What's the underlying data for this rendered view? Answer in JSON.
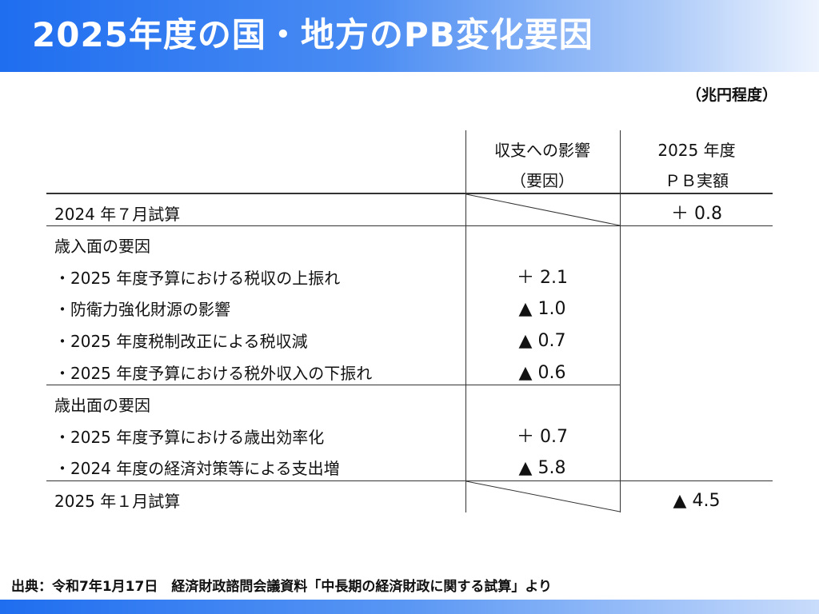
{
  "header": {
    "title": "2025年度の国・地方のPB変化要因"
  },
  "unit": "（兆円程度）",
  "table": {
    "col_headers": {
      "impact_line1": "収支への影響",
      "impact_line2": "（要因）",
      "pb_line1": "2025 年度",
      "pb_line2": "ＰＢ実額"
    },
    "rows": [
      {
        "label": "2024 年７月試算",
        "impact": "",
        "pb": "＋ 0.8"
      },
      {
        "label": "歳入面の要因",
        "impact": "",
        "pb": ""
      },
      {
        "label": "・2025 年度予算における税収の上振れ",
        "impact": "＋ 2.1",
        "pb": ""
      },
      {
        "label": "・防衛力強化財源の影響",
        "impact": "▲ 1.0",
        "pb": ""
      },
      {
        "label": "・2025 年度税制改正による税収減",
        "impact": "▲ 0.7",
        "pb": ""
      },
      {
        "label": "・2025 年度予算における税外収入の下振れ",
        "impact": "▲ 0.6",
        "pb": ""
      },
      {
        "label": "歳出面の要因",
        "impact": "",
        "pb": ""
      },
      {
        "label": "・2025 年度予算における歳出効率化",
        "impact": "＋ 0.7",
        "pb": ""
      },
      {
        "label": "・2024 年度の経済対策等による支出増",
        "impact": "▲ 5.8",
        "pb": ""
      },
      {
        "label": "2025 年１月試算",
        "impact": "",
        "pb": "▲ 4.5"
      }
    ]
  },
  "footer": {
    "source": "出典：令和7年1月17日　経済財政諮問会議資料「中長期の経済財政に関する試算」より"
  }
}
